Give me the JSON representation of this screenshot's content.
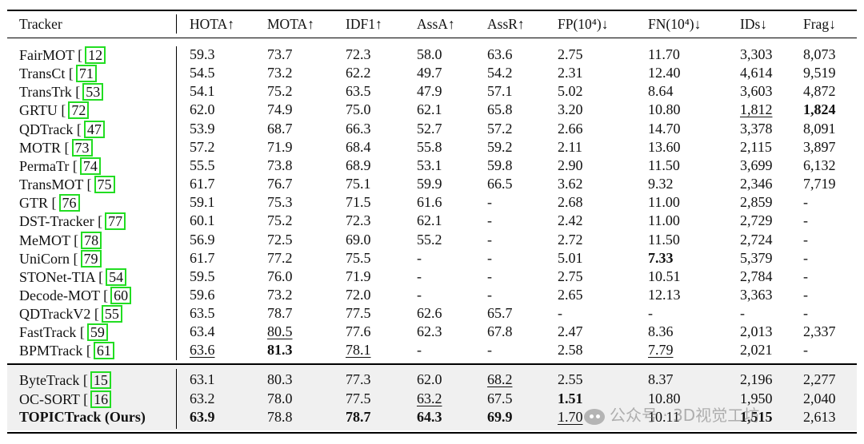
{
  "table": {
    "columns": [
      "Tracker",
      "HOTA↑",
      "MOTA↑",
      "IDF1↑",
      "AssA↑",
      "AssR↑",
      "FP(10⁴)↓",
      "FN(10⁴)↓",
      "IDs↓",
      "Frag↓"
    ],
    "group1": [
      {
        "name": "FairMOT",
        "ref": "12",
        "vals": [
          "59.3",
          "73.7",
          "72.3",
          "58.0",
          "63.6",
          "2.75",
          "11.70",
          "3,303",
          "8,073"
        ]
      },
      {
        "name": "TransCt",
        "ref": "71",
        "vals": [
          "54.5",
          "73.2",
          "62.2",
          "49.7",
          "54.2",
          "2.31",
          "12.40",
          "4,614",
          "9,519"
        ]
      },
      {
        "name": "TransTrk",
        "ref": "53",
        "vals": [
          "54.1",
          "75.2",
          "63.5",
          "47.9",
          "57.1",
          "5.02",
          "8.64",
          "3,603",
          "4,872"
        ]
      },
      {
        "name": "GRTU",
        "ref": "72",
        "vals": [
          "62.0",
          "74.9",
          "75.0",
          "62.1",
          "65.8",
          "3.20",
          "10.80",
          "1,812",
          "1,824"
        ]
      },
      {
        "name": "QDTrack",
        "ref": "47",
        "vals": [
          "53.9",
          "68.7",
          "66.3",
          "52.7",
          "57.2",
          "2.66",
          "14.70",
          "3,378",
          "8,091"
        ]
      },
      {
        "name": "MOTR",
        "ref": "73",
        "vals": [
          "57.2",
          "71.9",
          "68.4",
          "55.8",
          "59.2",
          "2.11",
          "13.60",
          "2,115",
          "3,897"
        ]
      },
      {
        "name": "PermaTr",
        "ref": "74",
        "vals": [
          "55.5",
          "73.8",
          "68.9",
          "53.1",
          "59.8",
          "2.90",
          "11.50",
          "3,699",
          "6,132"
        ]
      },
      {
        "name": "TransMOT",
        "ref": "75",
        "vals": [
          "61.7",
          "76.7",
          "75.1",
          "59.9",
          "66.5",
          "3.62",
          "9.32",
          "2,346",
          "7,719"
        ]
      },
      {
        "name": "GTR",
        "ref": "76",
        "vals": [
          "59.1",
          "75.3",
          "71.5",
          "61.6",
          "-",
          "2.68",
          "11.00",
          "2,859",
          "-"
        ]
      },
      {
        "name": "DST-Tracker",
        "ref": "77",
        "vals": [
          "60.1",
          "75.2",
          "72.3",
          "62.1",
          "-",
          "2.42",
          "11.00",
          "2,729",
          "-"
        ]
      },
      {
        "name": "MeMOT",
        "ref": "78",
        "vals": [
          "56.9",
          "72.5",
          "69.0",
          "55.2",
          "-",
          "2.72",
          "11.50",
          "2,724",
          "-"
        ]
      },
      {
        "name": "UniCorn",
        "ref": "79",
        "vals": [
          "61.7",
          "77.2",
          "75.5",
          "-",
          "-",
          "5.01",
          "7.33",
          "5,379",
          "-"
        ]
      },
      {
        "name": "STONet-TIA",
        "ref": "54",
        "vals": [
          "59.5",
          "76.0",
          "71.9",
          "-",
          "-",
          "2.75",
          "10.51",
          "2,784",
          "-"
        ]
      },
      {
        "name": "Decode-MOT",
        "ref": "60",
        "vals": [
          "59.6",
          "73.2",
          "72.0",
          "-",
          "-",
          "2.65",
          "12.13",
          "3,363",
          "-"
        ]
      },
      {
        "name": "QDTrackV2",
        "ref": "55",
        "vals": [
          "63.5",
          "78.7",
          "77.5",
          "62.6",
          "65.7",
          "-",
          "-",
          "-",
          "-"
        ]
      },
      {
        "name": "FastTrack",
        "ref": "59",
        "vals": [
          "63.4",
          "80.5",
          "77.6",
          "62.3",
          "67.8",
          "2.47",
          "8.36",
          "2,013",
          "2,337"
        ]
      },
      {
        "name": "BPMTrack",
        "ref": "61",
        "vals": [
          "63.6",
          "81.3",
          "78.1",
          "-",
          "-",
          "2.58",
          "7.79",
          "2,021",
          "-"
        ]
      }
    ],
    "group2": [
      {
        "name": "ByteTrack",
        "ref": "15",
        "vals": [
          "63.1",
          "80.3",
          "77.3",
          "62.0",
          "68.2",
          "2.55",
          "8.37",
          "2,196",
          "2,277"
        ]
      },
      {
        "name": "OC-SORT",
        "ref": "16",
        "vals": [
          "63.2",
          "78.0",
          "77.5",
          "63.2",
          "67.5",
          "1.51",
          "10.80",
          "1,950",
          "2,040"
        ]
      },
      {
        "name": "TOPICTrack (Ours)",
        "ref": "",
        "vals": [
          "63.9",
          "78.8",
          "78.7",
          "64.3",
          "69.9",
          "1.70",
          "10.11",
          "1,515",
          "2,613"
        ]
      }
    ]
  },
  "watermark": "公众号 · 3D视觉工坊"
}
